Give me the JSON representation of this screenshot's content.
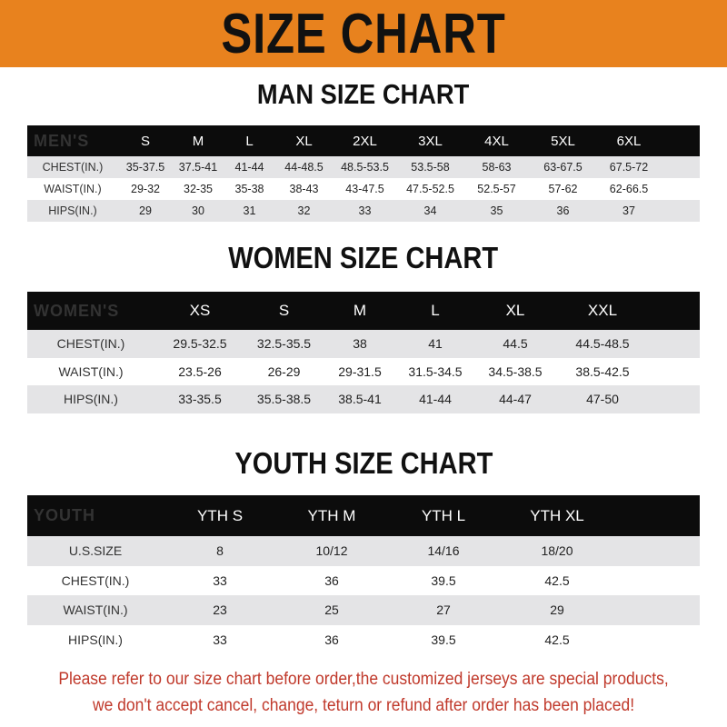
{
  "banner_title": "SIZE CHART",
  "colors": {
    "banner": "#e8821e",
    "header_row": "#0c0c0c",
    "alt_row": "#e4e4e6",
    "note": "#c0392b"
  },
  "men": {
    "title": "MAN SIZE CHART",
    "header": [
      "MEN'S",
      "S",
      "M",
      "L",
      "XL",
      "2XL",
      "3XL",
      "4XL",
      "5XL",
      "6XL"
    ],
    "rows": [
      [
        "CHEST(IN.)",
        "35-37.5",
        "37.5-41",
        "41-44",
        "44-48.5",
        "48.5-53.5",
        "53.5-58",
        "58-63",
        "63-67.5",
        "67.5-72"
      ],
      [
        "WAIST(IN.)",
        "29-32",
        "32-35",
        "35-38",
        "38-43",
        "43-47.5",
        "47.5-52.5",
        "52.5-57",
        "57-62",
        "62-66.5"
      ],
      [
        "HIPS(IN.)",
        "29",
        "30",
        "31",
        "32",
        "33",
        "34",
        "35",
        "36",
        "37"
      ]
    ]
  },
  "women": {
    "title": "WOMEN SIZE CHART",
    "header": [
      "WOMEN'S",
      "XS",
      "S",
      "M",
      "L",
      "XL",
      "XXL"
    ],
    "rows": [
      [
        "CHEST(IN.)",
        "29.5-32.5",
        "32.5-35.5",
        "38",
        "41",
        "44.5",
        "44.5-48.5"
      ],
      [
        "WAIST(IN.)",
        "23.5-26",
        "26-29",
        "29-31.5",
        "31.5-34.5",
        "34.5-38.5",
        "38.5-42.5"
      ],
      [
        "HIPS(IN.)",
        "33-35.5",
        "35.5-38.5",
        "38.5-41",
        "41-44",
        "44-47",
        "47-50"
      ]
    ]
  },
  "youth": {
    "title": "YOUTH SIZE CHART",
    "header": [
      "YOUTH",
      "YTH S",
      "YTH M",
      "YTH L",
      "YTH XL"
    ],
    "rows": [
      [
        "U.S.SIZE",
        "8",
        "10/12",
        "14/16",
        "18/20"
      ],
      [
        "CHEST(IN.)",
        "33",
        "36",
        "39.5",
        "42.5"
      ],
      [
        "WAIST(IN.)",
        "23",
        "25",
        "27",
        "29"
      ],
      [
        "HIPS(IN.)",
        "33",
        "36",
        "39.5",
        "42.5"
      ]
    ]
  },
  "note": {
    "line1": "Please refer to our size chart before order,the customized jerseys are special products,",
    "line2": "we don't accept cancel, change, teturn or refund after order has been placed!"
  }
}
